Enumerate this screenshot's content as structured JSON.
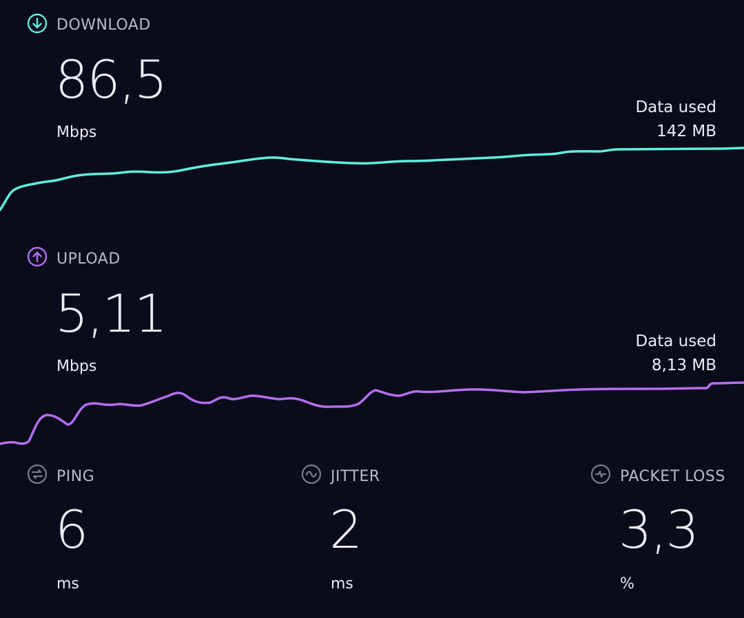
{
  "download": {
    "label": "DOWNLOAD",
    "value": "86,5",
    "unit": "Mbps",
    "data_used_label": "Data used",
    "data_used_value": "142 MB",
    "icon": "arrow-down-circle-icon",
    "color": "#5ff0e0"
  },
  "upload": {
    "label": "UPLOAD",
    "value": "5,11",
    "unit": "Mbps",
    "data_used_label": "Data used",
    "data_used_value": "8,13 MB",
    "icon": "arrow-up-circle-icon",
    "color": "#b46ef0"
  },
  "ping": {
    "label": "PING",
    "value": "6",
    "unit": "ms",
    "icon": "ping-icon"
  },
  "jitter": {
    "label": "JITTER",
    "value": "2",
    "unit": "ms",
    "icon": "jitter-icon"
  },
  "packet_loss": {
    "label": "PACKET LOSS",
    "value": "3,3",
    "unit": "%",
    "icon": "packet-loss-icon"
  },
  "colors": {
    "background": "#0b0c1b",
    "text": "#ececf4",
    "muted": "#b9bac6",
    "icon_gray": "#7b7d8c"
  }
}
